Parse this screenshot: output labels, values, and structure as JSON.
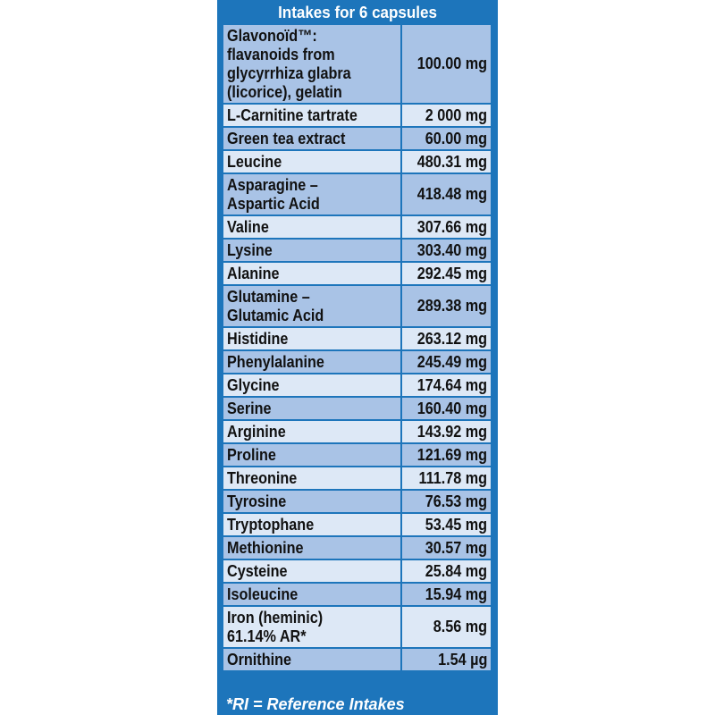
{
  "title": "Intakes for 6 capsules",
  "rows": [
    {
      "name_lines": [
        "Glavonoïd™:",
        "flavanoids from",
        "glycyrrhiza glabra",
        "(licorice), gelatin"
      ],
      "value": "100.00 mg"
    },
    {
      "name_lines": [
        "L-Carnitine tartrate"
      ],
      "value": "2 000 mg"
    },
    {
      "name_lines": [
        "Green tea extract"
      ],
      "value": "60.00 mg"
    },
    {
      "name_lines": [
        "Leucine"
      ],
      "value": "480.31 mg"
    },
    {
      "name_lines": [
        "Asparagine –",
        "Aspartic Acid"
      ],
      "value": "418.48 mg"
    },
    {
      "name_lines": [
        "Valine"
      ],
      "value": "307.66 mg"
    },
    {
      "name_lines": [
        "Lysine"
      ],
      "value": "303.40 mg"
    },
    {
      "name_lines": [
        "Alanine"
      ],
      "value": "292.45 mg"
    },
    {
      "name_lines": [
        "Glutamine –",
        "Glutamic Acid"
      ],
      "value": "289.38 mg"
    },
    {
      "name_lines": [
        "Histidine"
      ],
      "value": "263.12 mg"
    },
    {
      "name_lines": [
        "Phenylalanine"
      ],
      "value": "245.49 mg"
    },
    {
      "name_lines": [
        "Glycine"
      ],
      "value": "174.64 mg"
    },
    {
      "name_lines": [
        "Serine"
      ],
      "value": "160.40 mg"
    },
    {
      "name_lines": [
        "Arginine"
      ],
      "value": "143.92 mg"
    },
    {
      "name_lines": [
        "Proline"
      ],
      "value": "121.69 mg"
    },
    {
      "name_lines": [
        "Threonine"
      ],
      "value": "111.78 mg"
    },
    {
      "name_lines": [
        "Tyrosine"
      ],
      "value": "76.53 mg"
    },
    {
      "name_lines": [
        "Tryptophane"
      ],
      "value": "53.45 mg"
    },
    {
      "name_lines": [
        "Methionine"
      ],
      "value": "30.57 mg"
    },
    {
      "name_lines": [
        "Cysteine"
      ],
      "value": "25.84 mg"
    },
    {
      "name_lines": [
        "Isoleucine"
      ],
      "value": "15.94 mg"
    },
    {
      "name_lines": [
        "Iron (heminic)",
        "61.14% AR*"
      ],
      "value": "8.56 mg"
    },
    {
      "name_lines": [
        "Ornithine"
      ],
      "value": "1.54 µg"
    }
  ],
  "footnote": "*RI = Reference Intakes",
  "colors": {
    "frame": "#1d75bb",
    "row_dark": "#a9c3e6",
    "row_light": "#dde8f6",
    "text": "#111111"
  }
}
